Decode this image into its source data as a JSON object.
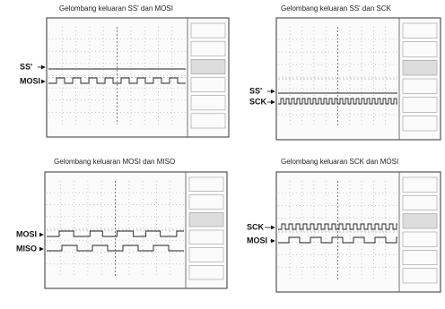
{
  "panels": [
    {
      "title": "Gelombang keluaran SS' dan MOSI",
      "signals": [
        "SS'",
        "MOSI"
      ]
    },
    {
      "title": "Gelombang keluaran SS' dan SCK",
      "signals": [
        "SS'",
        "SCK"
      ]
    },
    {
      "title": "Gelombang keluaran MOSI dan MISO",
      "signals": [
        "MOSI",
        "MISO"
      ]
    },
    {
      "title": "Gelombang keluaran SCK dan MOSI",
      "signals": [
        "SCK",
        "MOSI"
      ]
    }
  ]
}
